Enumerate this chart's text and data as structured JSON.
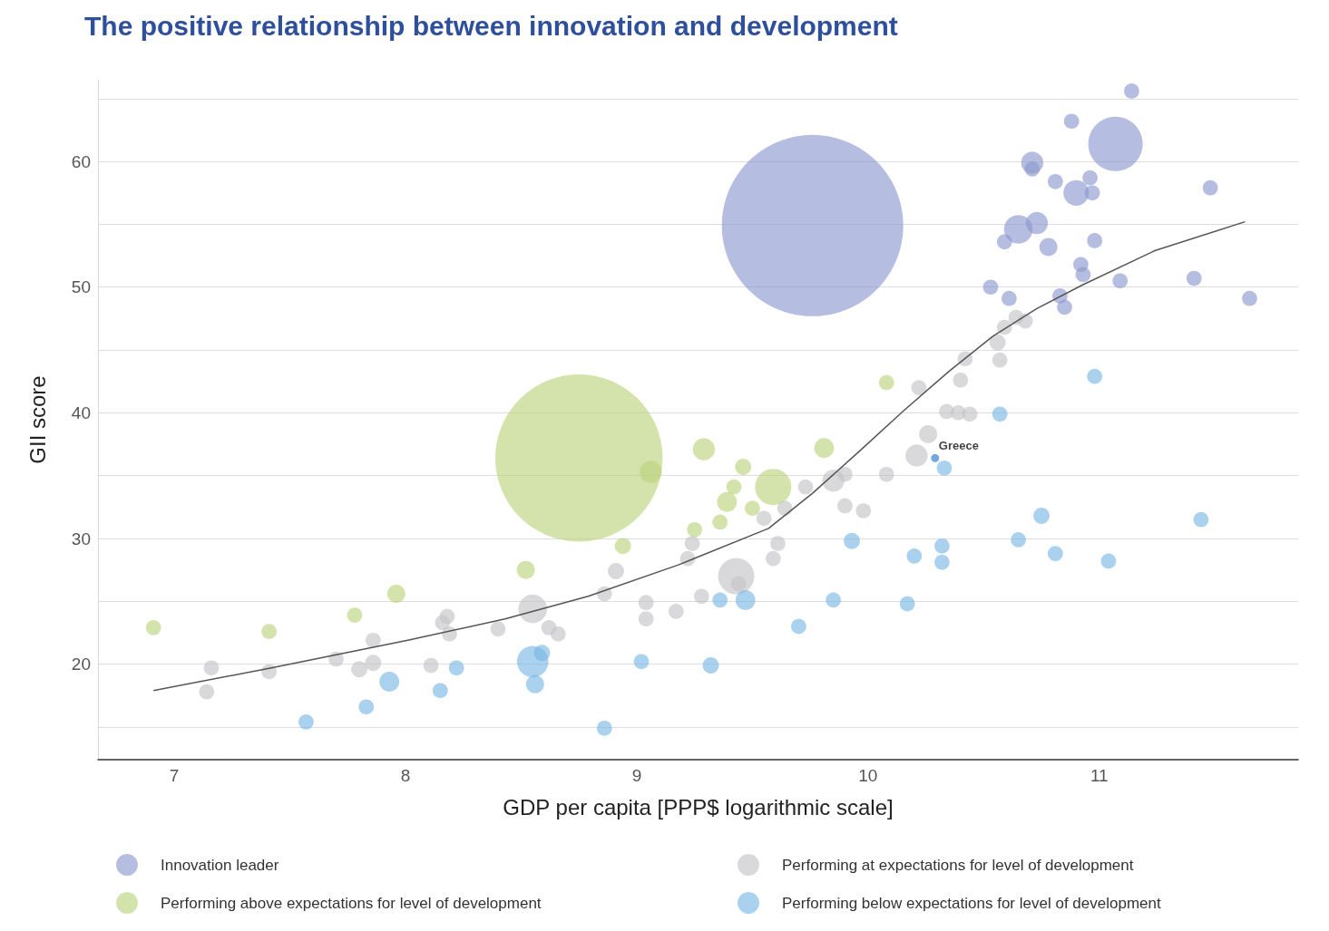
{
  "chart_data": {
    "type": "bubble",
    "title": "The positive relationship between innovation and development",
    "xlabel": "GDP per capita [PPP$ logarithmic scale]",
    "ylabel": "GII score",
    "xlim": [
      6.67,
      11.86
    ],
    "xticks": [
      7,
      8,
      9,
      10,
      11
    ],
    "ylim": [
      12.4,
      66.5
    ],
    "yticks": [
      {
        "value": 15,
        "label": null
      },
      20,
      {
        "value": 25,
        "label": null
      },
      30,
      {
        "value": 35,
        "label": null
      },
      40,
      {
        "value": 45,
        "label": null
      },
      50,
      {
        "value": 55,
        "label": null
      },
      60,
      {
        "value": 65,
        "label": null
      }
    ],
    "grid": "y",
    "legend": "bottom",
    "marker": "circle",
    "annotations": [
      {
        "text": "Greece",
        "x": 10.29,
        "y": 36.4
      }
    ],
    "series": [
      {
        "name": "Innovation leader",
        "color": "#8e9ad0",
        "x": [
          11.14,
          10.88,
          11.07,
          10.71,
          10.71,
          10.81,
          10.9,
          10.96,
          10.97,
          10.65,
          10.73,
          10.59,
          10.78,
          10.98,
          11.48,
          10.92,
          10.93,
          11.09,
          11.41,
          11.65,
          10.53,
          10.61,
          10.83,
          10.85,
          9.76
        ],
        "values": [
          65.6,
          63.2,
          61.4,
          59.9,
          59.4,
          58.4,
          57.5,
          58.7,
          57.5,
          54.6,
          55.1,
          53.6,
          53.2,
          53.7,
          57.9,
          51.8,
          51.0,
          50.5,
          50.7,
          49.1,
          50.0,
          49.1,
          49.3,
          48.4,
          54.9
        ],
        "sizes": [
          0.007,
          0.007,
          0.09,
          0.015,
          0.007,
          0.007,
          0.02,
          0.007,
          0.007,
          0.025,
          0.015,
          0.007,
          0.01,
          0.007,
          0.007,
          0.007,
          0.007,
          0.007,
          0.007,
          0.007,
          0.007,
          0.007,
          0.007,
          0.007,
          1
        ]
      },
      {
        "name": "Performing above expectations for level of development",
        "color": "#bcd47e",
        "x": [
          6.91,
          7.41,
          7.78,
          7.96,
          8.52,
          8.75,
          9.06,
          9.29,
          9.46,
          9.42,
          9.39,
          9.36,
          9.25,
          8.94,
          9.59,
          9.81,
          10.08,
          9.5
        ],
        "values": [
          22.9,
          22.6,
          23.9,
          25.6,
          27.5,
          36.4,
          35.3,
          37.1,
          35.7,
          34.1,
          32.9,
          31.3,
          30.7,
          29.4,
          34.1,
          37.2,
          42.4,
          32.4
        ],
        "sizes": [
          0.007,
          0.007,
          0.007,
          0.01,
          0.01,
          0.85,
          0.015,
          0.015,
          0.008,
          0.007,
          0.012,
          0.007,
          0.007,
          0.008,
          0.04,
          0.012,
          0.007,
          0.007
        ]
      },
      {
        "name": "Performing at expectations for level of development",
        "color": "#c4c4c8",
        "x": [
          7.14,
          7.16,
          7.41,
          7.7,
          7.8,
          7.86,
          7.86,
          8.11,
          8.16,
          8.18,
          8.19,
          8.4,
          8.55,
          8.62,
          8.66,
          8.86,
          8.91,
          9.04,
          9.04,
          9.17,
          9.28,
          9.22,
          9.24,
          9.43,
          9.44,
          9.59,
          9.61,
          9.55,
          9.64,
          9.73,
          9.85,
          9.9,
          9.9,
          9.98,
          10.08,
          10.22,
          10.21,
          10.26,
          10.34,
          10.39,
          10.44,
          10.4,
          10.42,
          10.57,
          10.56,
          10.59,
          10.64,
          10.68
        ],
        "values": [
          17.8,
          19.7,
          19.4,
          20.4,
          19.6,
          21.9,
          20.1,
          19.9,
          23.3,
          23.8,
          22.4,
          22.8,
          24.4,
          22.9,
          22.4,
          25.6,
          27.4,
          24.9,
          23.6,
          24.2,
          25.4,
          28.4,
          29.6,
          27.0,
          26.4,
          28.4,
          29.6,
          31.6,
          32.4,
          34.1,
          34.6,
          35.1,
          32.6,
          32.2,
          35.1,
          42.0,
          36.6,
          38.3,
          40.1,
          40.0,
          39.9,
          42.6,
          44.3,
          44.2,
          45.6,
          46.8,
          47.6,
          47.3
        ],
        "sizes": [
          0.007,
          0.007,
          0.007,
          0.007,
          0.008,
          0.007,
          0.008,
          0.007,
          0.007,
          0.007,
          0.007,
          0.007,
          0.025,
          0.007,
          0.007,
          0.007,
          0.008,
          0.007,
          0.007,
          0.007,
          0.007,
          0.007,
          0.007,
          0.04,
          0.007,
          0.007,
          0.007,
          0.007,
          0.007,
          0.007,
          0.015,
          0.007,
          0.007,
          0.007,
          0.007,
          0.007,
          0.015,
          0.01,
          0.007,
          0.007,
          0.007,
          0.007,
          0.007,
          0.007,
          0.008,
          0.007,
          0.007,
          0.007
        ]
      },
      {
        "name": "Performing below expectations for level of development",
        "color": "#7cb8e4",
        "x": [
          7.57,
          7.83,
          7.93,
          8.15,
          8.22,
          8.55,
          8.59,
          8.56,
          8.86,
          9.02,
          9.32,
          9.36,
          9.47,
          9.7,
          9.85,
          9.93,
          10.17,
          10.2,
          10.32,
          10.32,
          10.33,
          10.57,
          10.65,
          10.75,
          10.81,
          10.98,
          11.04,
          11.44
        ],
        "values": [
          15.4,
          16.6,
          18.6,
          17.9,
          19.7,
          20.2,
          20.9,
          18.4,
          14.9,
          20.2,
          19.9,
          25.1,
          25.1,
          23.0,
          25.1,
          29.8,
          24.8,
          28.6,
          29.4,
          28.1,
          35.6,
          39.9,
          29.9,
          31.8,
          28.8,
          42.9,
          28.2,
          31.5
        ],
        "sizes": [
          0.007,
          0.007,
          0.012,
          0.007,
          0.007,
          0.03,
          0.008,
          0.01,
          0.007,
          0.007,
          0.008,
          0.007,
          0.012,
          0.007,
          0.007,
          0.008,
          0.007,
          0.007,
          0.007,
          0.007,
          0.007,
          0.007,
          0.007,
          0.008,
          0.007,
          0.007,
          0.007,
          0.007
        ]
      },
      {
        "color": "#2a78c8",
        "x": [
          10.29
        ],
        "values": [
          36.4
        ],
        "sizes": [
          0.002
        ]
      },
      {
        "type": "line",
        "color": "#555555",
        "marker": "none",
        "x": [
          6.91,
          7.42,
          8.01,
          8.43,
          8.79,
          9.18,
          9.57,
          9.76,
          9.96,
          10.15,
          10.35,
          10.54,
          10.73,
          10.93,
          11.24,
          11.63
        ],
        "values": [
          17.9,
          19.7,
          21.9,
          23.6,
          25.4,
          27.9,
          30.8,
          33.6,
          36.9,
          40.1,
          43.3,
          46.1,
          48.3,
          50.2,
          52.9,
          55.2
        ]
      }
    ]
  }
}
